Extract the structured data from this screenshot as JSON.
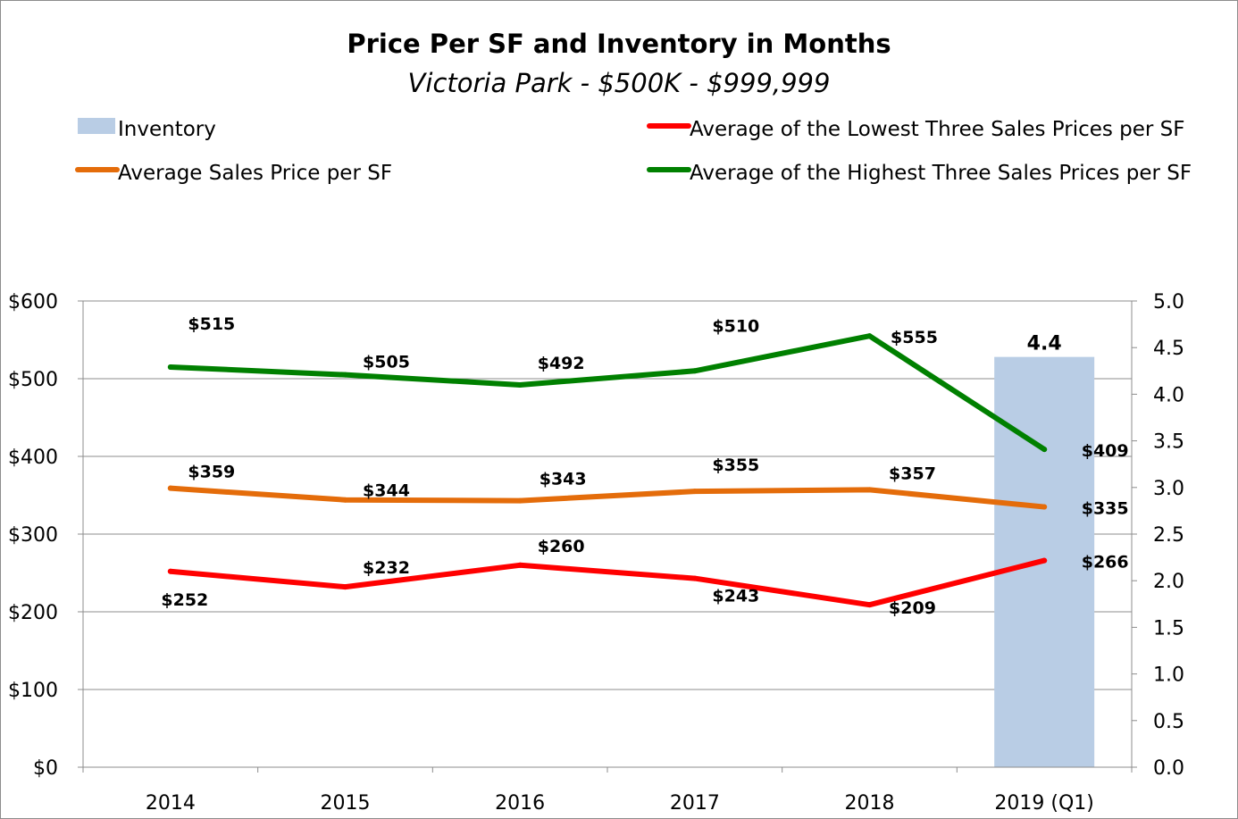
{
  "chart_data": {
    "type": "line",
    "title": "Price Per SF and Inventory in Months",
    "subtitle": "Victoria Park - $500K - $999,999",
    "categories": [
      "2014",
      "2015",
      "2016",
      "2017",
      "2018",
      "2019 (Q1)"
    ],
    "y_left": {
      "range": [
        0,
        600
      ],
      "ticks": [
        "$0",
        "$100",
        "$200",
        "$300",
        "$400",
        "$500",
        "$600"
      ]
    },
    "y_right": {
      "range": [
        0,
        5
      ],
      "ticks": [
        "0.0",
        "0.5",
        "1.0",
        "1.5",
        "2.0",
        "2.5",
        "3.0",
        "3.5",
        "4.0",
        "4.5",
        "5.0"
      ]
    },
    "grid": true,
    "legend_position": "top",
    "series": [
      {
        "name": "Inventory",
        "kind": "bar",
        "axis": "right",
        "color": "#b9cde5",
        "values": [
          null,
          null,
          null,
          null,
          null,
          4.4
        ],
        "labels": [
          "",
          "",
          "",
          "",
          "",
          "4.4"
        ]
      },
      {
        "name": "Average of the Lowest Three Sales Prices per SF",
        "kind": "line",
        "axis": "left",
        "color": "#ff0000",
        "values": [
          252,
          232,
          260,
          243,
          209,
          266
        ],
        "labels": [
          "$252",
          "$232",
          "$260",
          "$243",
          "$209",
          "$266"
        ]
      },
      {
        "name": "Average Sales Price per SF",
        "kind": "line",
        "axis": "left",
        "color": "#e46c0a",
        "values": [
          359,
          344,
          343,
          355,
          357,
          335
        ],
        "labels": [
          "$359",
          "$344",
          "$343",
          "$355",
          "$357",
          "$335"
        ]
      },
      {
        "name": "Average of the Highest Three Sales Prices per SF",
        "kind": "line",
        "axis": "left",
        "color": "#008000",
        "values": [
          515,
          505,
          492,
          510,
          555,
          409
        ],
        "labels": [
          "$515",
          "$505",
          "$492",
          "$510",
          "$555",
          "$409"
        ]
      }
    ]
  }
}
